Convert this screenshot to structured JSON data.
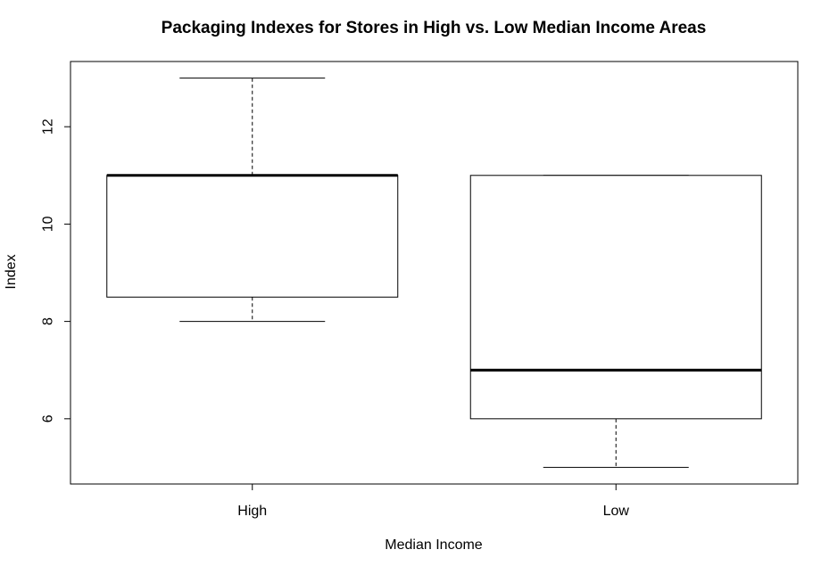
{
  "chart_data": {
    "type": "boxplot",
    "title": "Packaging Indexes for Stores in High vs. Low Median Income Areas",
    "xlabel": "Median Income",
    "ylabel": "Index",
    "categories": [
      "High",
      "Low"
    ],
    "boxes": [
      {
        "category": "High",
        "whisker_low": 8,
        "q1": 8.5,
        "median": 11,
        "q3": 11,
        "whisker_high": 13
      },
      {
        "category": "Low",
        "whisker_low": 5,
        "q1": 6,
        "median": 7,
        "q3": 11,
        "whisker_high": 11
      }
    ],
    "ylim": [
      4.66,
      13.34
    ],
    "yticks": [
      6,
      8,
      10,
      12
    ],
    "grid": false,
    "legend": "none"
  }
}
